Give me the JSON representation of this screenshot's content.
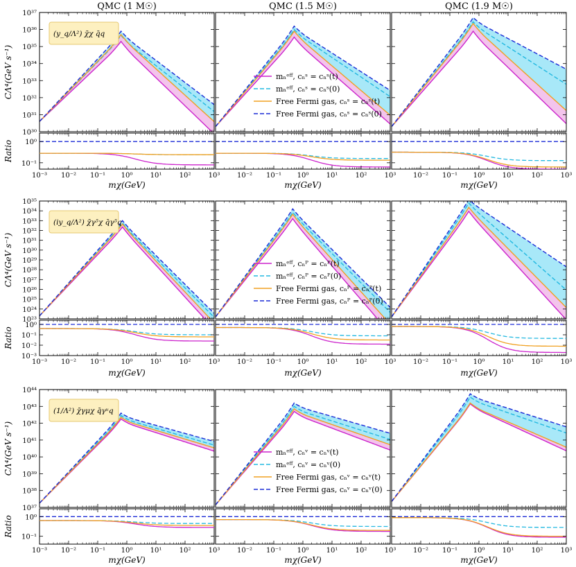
{
  "figure": {
    "titles": [
      "QMC (1 M☉)",
      "QMC (1.5 M☉)",
      "QMC (1.9 M☉)"
    ],
    "main_ylabel": "CΛ⁴(GeV s⁻¹)",
    "ratio_ylabel": "Ratio",
    "xlabel": "mχ(GeV)",
    "colors": {
      "eff_t": "#cc22cc",
      "eff_0": "#22b8e0",
      "fermi_t": "#f0a020",
      "fermi_0": "#1a2ad6",
      "fill_pink": "#f3c4ec",
      "fill_cyan": "#a8e8f8",
      "box_bg": "#fdf0c0",
      "box_border": "#e6c870"
    }
  },
  "chart_data": [
    {
      "type": "line",
      "operator_label": "(y_q/Λ²) χ̄χ q̄q",
      "operator_html": "<tspan>y</tspan><tspan font-size='7' dy='3'>q</tspan><tspan dy='-3'>/Λ² χ̄χ q̄q</tspan>",
      "legend": [
        "mₙᵉᶠᶠ, cₙˢ = cₙˢ(t)",
        "mₙᵉᶠᶠ, cₙˢ = cₙˢ(0)",
        "Free Fermi gas, cₙˢ = cₙˢ(t)",
        "Free Fermi gas, cₙˢ = cₙˢ(0)"
      ],
      "legend_panel": 1,
      "ylim": [
        30,
        37
      ],
      "ytick_labels": [
        "10³⁰",
        "10³¹",
        "10³²",
        "10³³",
        "10³⁴",
        "10³⁵",
        "10³⁶",
        "10³⁷"
      ],
      "ratio_ylim": [
        -1.3,
        0.4
      ],
      "ratio_ytick_labels": [
        "10⁻¹",
        "10⁰"
      ],
      "ratio_ytick_values": [
        -1,
        0
      ],
      "panels": [
        {
          "low": 30.6,
          "peak_x": -0.2,
          "peaks": [
            35.15,
            35.5,
            35.55,
            35.75
          ],
          "slopes": [
            1.65,
            1.35,
            1.55,
            1.3
          ],
          "ratio_low": [
            -0.55,
            -0.55,
            -0.55,
            0
          ],
          "ratio_high": [
            -1.1,
            -0.62,
            -0.62,
            0
          ]
        },
        {
          "low": 30.3,
          "peak_x": -0.3,
          "peaks": [
            35.4,
            35.85,
            35.75,
            36.05
          ],
          "slopes": [
            1.5,
            1.15,
            1.45,
            1.1
          ],
          "ratio_low": [
            -0.55,
            -0.55,
            -0.55,
            0
          ],
          "ratio_high": [
            -1.2,
            -0.8,
            -0.88,
            0
          ]
        },
        {
          "low": 30.3,
          "peak_x": -0.2,
          "peaks": [
            35.75,
            36.3,
            36.2,
            36.55
          ],
          "slopes": [
            1.65,
            1.1,
            1.55,
            0.9
          ],
          "ratio_low": [
            -0.5,
            -0.5,
            -0.5,
            0
          ],
          "ratio_high": [
            -1.3,
            -0.9,
            -1.2,
            0
          ]
        }
      ]
    },
    {
      "type": "line",
      "operator_label": "(iy_q/Λ²) χ̄γ⁵χ q̄γ⁵q",
      "legend": [
        "mₙᵉᶠᶠ, cₙᴾ = cₙᴾ(t)",
        "mₙᵉᶠᶠ, cₙᴾ = cₙᴾ(0)",
        "Free Fermi gas, cₙᴾ = cₙᴾ(t)",
        "Free Fermi gas, cₙᴾ = cₙᴾ(0)"
      ],
      "legend_panel": 1,
      "ylim": [
        23,
        35
      ],
      "ytick_labels": [
        "10²³",
        "10²⁴",
        "10²⁵",
        "10²⁶",
        "10²⁷",
        "10²⁸",
        "10²⁹",
        "10³⁰",
        "10³¹",
        "10³²",
        "10³³",
        "10³⁴",
        "10³⁵"
      ],
      "ratio_ylim": [
        -3,
        0.4
      ],
      "ratio_ytick_labels": [
        "10⁻³",
        "10⁻²",
        "10⁻¹",
        "10⁰"
      ],
      "ratio_ytick_values": [
        -3,
        -2,
        -1,
        0
      ],
      "panels": [
        {
          "low": 23.3,
          "peak_x": -0.15,
          "peaks": [
            32.2,
            32.6,
            32.5,
            32.85
          ],
          "slopes": [
            3.25,
            3.0,
            3.15,
            2.95
          ],
          "ratio_low": [
            -0.4,
            -0.4,
            -0.4,
            0
          ],
          "ratio_high": [
            -1.6,
            -1.0,
            -1.2,
            0
          ]
        },
        {
          "low": 23.2,
          "peak_x": -0.35,
          "peaks": [
            33.05,
            33.7,
            33.5,
            34.05
          ],
          "slopes": [
            3.45,
            3.0,
            3.3,
            2.95
          ],
          "ratio_low": [
            -0.3,
            -0.3,
            -0.3,
            0
          ],
          "ratio_high": [
            -1.9,
            -1.1,
            -1.5,
            0
          ]
        },
        {
          "low": 23.2,
          "peak_x": -0.35,
          "peaks": [
            33.8,
            34.65,
            34.2,
            35.0
          ],
          "slopes": [
            3.25,
            2.6,
            3.0,
            2.0
          ],
          "ratio_low": [
            -0.2,
            -0.2,
            -0.2,
            0
          ],
          "ratio_high": [
            -2.7,
            -1.35,
            -2.1,
            0
          ]
        }
      ]
    },
    {
      "type": "line",
      "operator_label": "(1/Λ²) χ̄γμχ q̄γᵘq",
      "legend": [
        "mₙᵉᶠᶠ, cₙᵛ = cₙᵛ(t)",
        "mₙᵉᶠᶠ, cₙᵛ = cₙᵛ(0)",
        "Free Fermi gas, cₙᵛ = cₙᵛ(t)",
        "Free Fermi gas, cₙᵛ = cₙᵛ(0)"
      ],
      "legend_panel": 1,
      "ylim": [
        37,
        44
      ],
      "ytick_labels": [
        "10³⁷",
        "10³⁸",
        "10³⁹",
        "10⁴⁰",
        "10⁴¹",
        "10⁴²",
        "10⁴³",
        "10⁴⁴"
      ],
      "ratio_ylim": [
        -1.4,
        0.4
      ],
      "ratio_ytick_labels": [
        "10⁻¹",
        "10⁰"
      ],
      "ratio_ytick_values": [
        -1,
        0
      ],
      "panels": [
        {
          "low": 37.25,
          "peak_x": -0.2,
          "peaks": [
            42.1,
            42.3,
            42.2,
            42.45
          ],
          "slopes": [
            0.55,
            0.5,
            0.52,
            0.48
          ],
          "ratio_low": [
            -0.2,
            -0.2,
            -0.2,
            0
          ],
          "ratio_high": [
            -0.55,
            -0.35,
            -0.45,
            0
          ]
        },
        {
          "low": 37.15,
          "peak_x": -0.3,
          "peaks": [
            42.55,
            42.85,
            42.7,
            43.05
          ],
          "slopes": [
            0.65,
            0.55,
            0.6,
            0.5
          ],
          "ratio_low": [
            -0.15,
            -0.15,
            -0.15,
            0
          ],
          "ratio_high": [
            -0.75,
            -0.5,
            -0.7,
            0
          ]
        },
        {
          "low": 37.35,
          "peak_x": -0.3,
          "peaks": [
            43.0,
            43.4,
            43.05,
            43.6
          ],
          "slopes": [
            0.8,
            0.6,
            0.75,
            0.55
          ],
          "ratio_low": [
            -0.05,
            -0.05,
            -0.05,
            0
          ],
          "ratio_high": [
            -1.05,
            -0.55,
            -1.0,
            0
          ]
        }
      ]
    }
  ],
  "x_axis": {
    "xlim": [
      -3,
      3
    ],
    "tick_labels": [
      "10⁻³",
      "10⁻²",
      "10⁻¹",
      "10⁰",
      "10¹",
      "10²",
      "10³"
    ]
  }
}
